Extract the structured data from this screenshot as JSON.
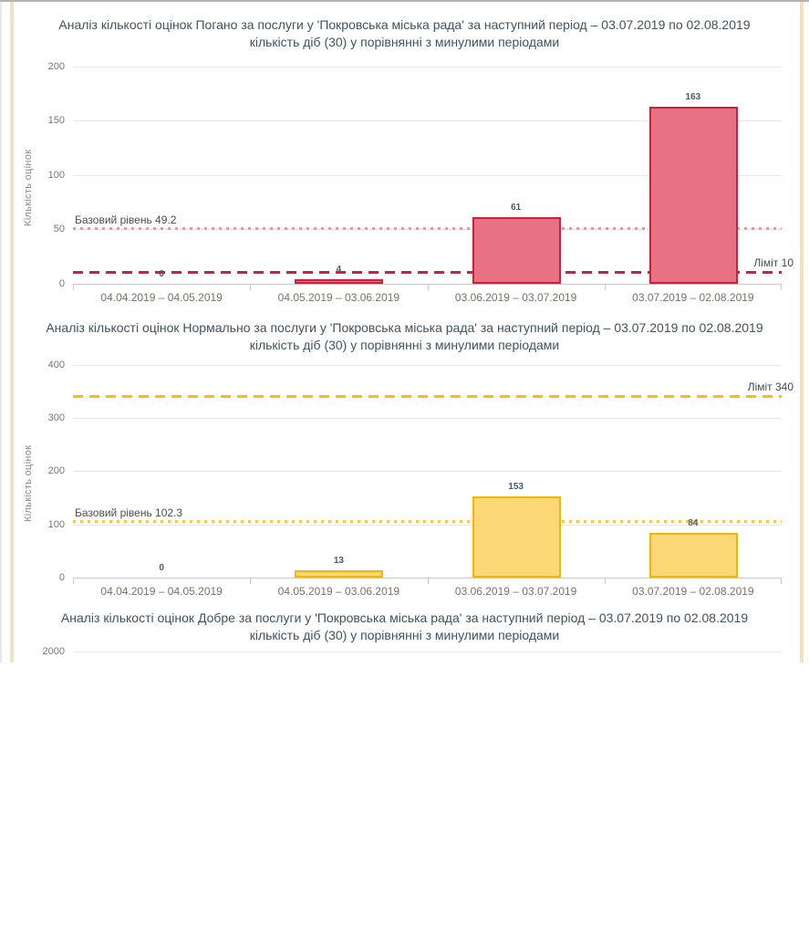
{
  "page": {
    "top_border_color": "#b3b3b3",
    "side_stripe_color": "#f3e2bc",
    "background": "#ffffff"
  },
  "chart_data": [
    {
      "type": "bar",
      "title": "Аналіз кількості оцінок Погано за послуги у 'Покровська міська рада' за наступний період – 03.07.2019 по 02.08.2019 кількість діб (30) у порівнянні з минулими періодами",
      "ylabel": "Кількість оцінок",
      "categories": [
        "04.04.2019 – 04.05.2019",
        "04.05.2019 – 03.06.2019",
        "03.06.2019 – 03.07.2019",
        "03.07.2019 – 02.08.2019"
      ],
      "values": [
        0,
        4,
        61,
        163
      ],
      "ylim": [
        0,
        200
      ],
      "yticks": [
        0,
        50,
        100,
        150,
        200
      ],
      "grid": true,
      "legend": "none",
      "limit": {
        "value": 10,
        "label": "Ліміт 10"
      },
      "baseline": {
        "value": 49.2,
        "label": "Базовий рівень 49.2"
      },
      "colors": {
        "bar_fill": "#e87284",
        "bar_border": "#cb2139",
        "limit_line": "#cb2139",
        "baseline_line": "#ef94a4"
      }
    },
    {
      "type": "bar",
      "title": "Аналіз кількості оцінок Нормально за послуги у 'Покровська міська рада' за наступний період – 03.07.2019 по 02.08.2019 кількість діб (30) у порівнянні з минулими періодами",
      "ylabel": "Кількість оцінок",
      "categories": [
        "04.04.2019 – 04.05.2019",
        "04.05.2019 – 03.06.2019",
        "03.06.2019 – 03.07.2019",
        "03.07.2019 – 02.08.2019"
      ],
      "values": [
        0,
        13,
        153,
        84
      ],
      "ylim": [
        0,
        400
      ],
      "yticks": [
        0,
        100,
        200,
        300,
        400
      ],
      "grid": true,
      "legend": "none",
      "limit": {
        "value": 340,
        "label": "Ліміт 340"
      },
      "baseline": {
        "value": 102.3,
        "label": "Базовий рівень 102.3"
      },
      "colors": {
        "bar_fill": "#fcd876",
        "bar_border": "#f5b40a",
        "limit_line": "#fbbd13",
        "baseline_line": "#f6c94e"
      }
    },
    {
      "type": "bar",
      "title": "Аналіз кількості оцінок Добре за послуги у 'Покровська міська рада' за наступний період – 03.07.2019 по 02.08.2019 кількість діб (30) у порівнянні з минулими періодами",
      "ylim": [
        0,
        2000
      ],
      "yticks": [
        2000
      ],
      "grid": true,
      "legend": "none",
      "partial": true
    }
  ]
}
